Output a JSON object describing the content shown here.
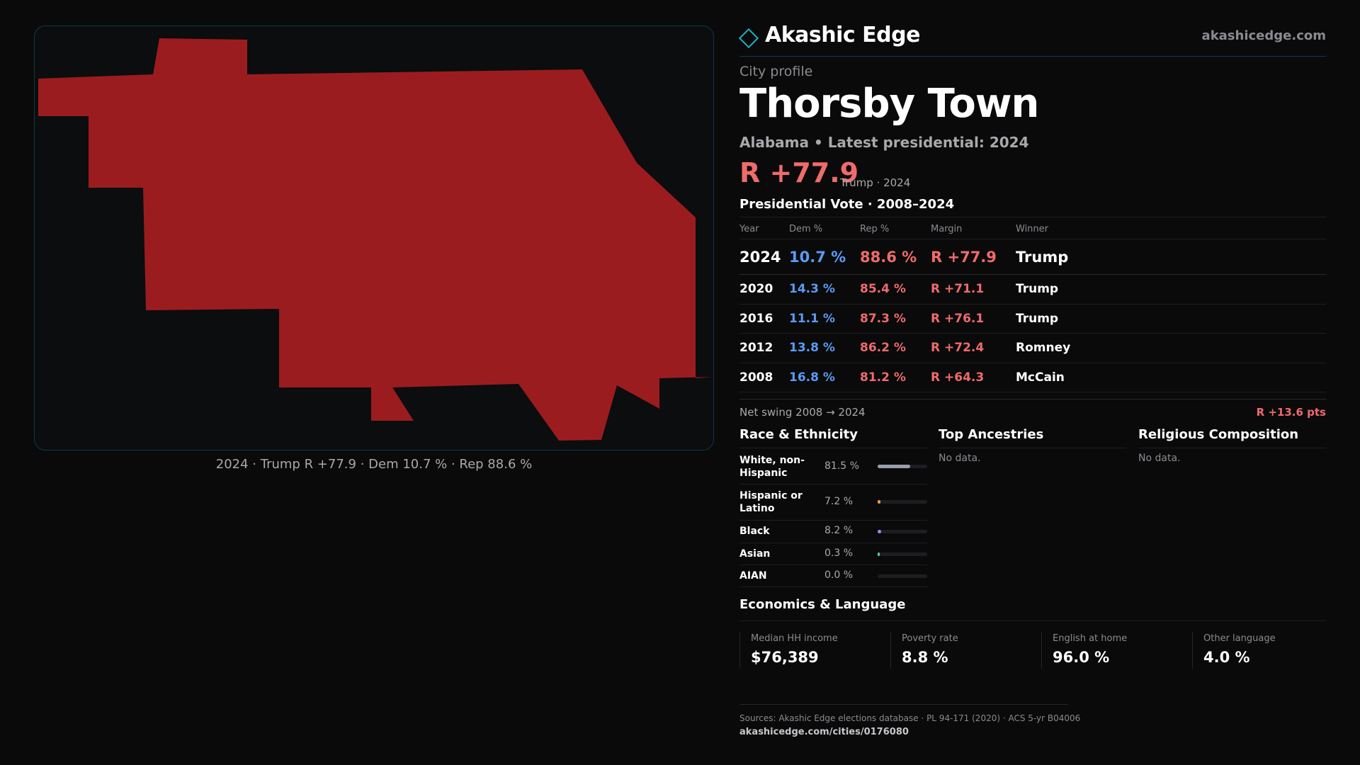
{
  "map": {
    "fill_color": "#9b1c1f",
    "caption": "2024 · Trump R +77.9 · Dem 10.7 % · Rep 88.6 %"
  },
  "header": {
    "brand": "Akashic Edge",
    "domain": "akashicedge.com",
    "logo_icon": "diamond-outline-icon"
  },
  "profile": {
    "eyebrow": "City profile",
    "title": "Thorsby Town",
    "subtitle": "Alabama • Latest presidential: 2024",
    "margin": "R +77.9",
    "margin_note": "Trump · 2024"
  },
  "presidential": {
    "title": "Presidential Vote · 2008–2024",
    "columns": [
      "Year",
      "Dem %",
      "Rep %",
      "Margin",
      "Winner"
    ],
    "rows": [
      {
        "year": "2024",
        "dem": "10.7 %",
        "rep": "88.6 %",
        "margin": "R +77.9",
        "winner": "Trump"
      },
      {
        "year": "2020",
        "dem": "14.3 %",
        "rep": "85.4 %",
        "margin": "R +71.1",
        "winner": "Trump"
      },
      {
        "year": "2016",
        "dem": "11.1 %",
        "rep": "87.3 %",
        "margin": "R +76.1",
        "winner": "Trump"
      },
      {
        "year": "2012",
        "dem": "13.8 %",
        "rep": "86.2 %",
        "margin": "R +72.4",
        "winner": "Romney"
      },
      {
        "year": "2008",
        "dem": "16.8 %",
        "rep": "81.2 %",
        "margin": "R +64.3",
        "winner": "McCain"
      }
    ],
    "swing_label": "Net swing 2008 → 2024",
    "swing_value": "R +13.6 pts"
  },
  "race": {
    "title": "Race & Ethnicity",
    "rows": [
      {
        "label": "White, non-Hispanic",
        "pct": "81.5 %",
        "value": 81.5,
        "color": "#9aa0aa"
      },
      {
        "label": "Hispanic or Latino",
        "pct": "7.2 %",
        "value": 7.2,
        "color": "#e3a33c"
      },
      {
        "label": "Black",
        "pct": "8.2 %",
        "value": 8.2,
        "color": "#9b8cf0"
      },
      {
        "label": "Asian",
        "pct": "0.3 %",
        "value": 0.3,
        "color": "#5fc9a0"
      },
      {
        "label": "AIAN",
        "pct": "0.0 %",
        "value": 0.0,
        "color": "#7a7a80"
      }
    ]
  },
  "ancestries": {
    "title": "Top Ancestries",
    "empty": "No data."
  },
  "religion": {
    "title": "Religious Composition",
    "empty": "No data."
  },
  "economics": {
    "title": "Economics & Language",
    "stats": [
      {
        "label": "Median HH income",
        "value": "$76,389"
      },
      {
        "label": "Poverty rate",
        "value": "8.8 %"
      },
      {
        "label": "English at home",
        "value": "96.0 %"
      },
      {
        "label": "Other language",
        "value": "4.0 %"
      }
    ]
  },
  "footer": {
    "sources": "Sources: Akashic Edge elections database · PL 94-171 (2020) · ACS 5-yr B04006",
    "url": "akashicedge.com/cities/0176080"
  }
}
